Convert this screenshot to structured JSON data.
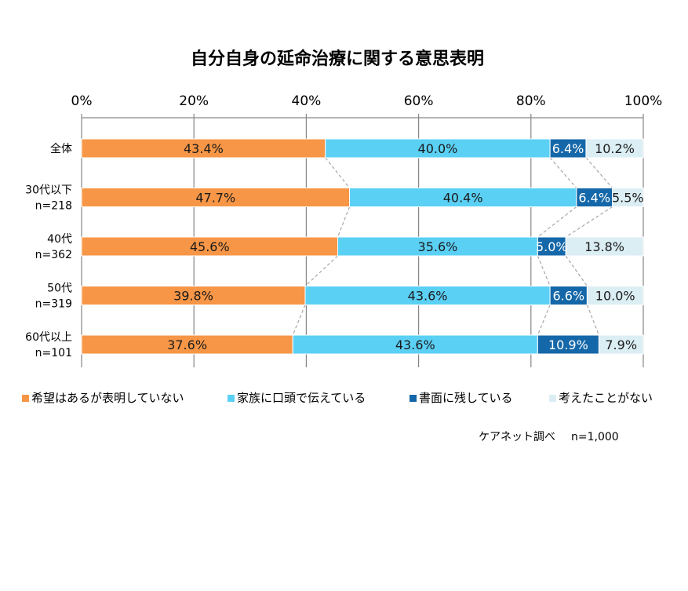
{
  "chart_data": {
    "type": "bar",
    "orientation": "horizontal",
    "stacked": true,
    "percent": true,
    "title": "自分自身の延命治療に関する意思表明",
    "xlim": [
      0,
      100
    ],
    "x_ticks": [
      "0%",
      "20%",
      "40%",
      "60%",
      "80%",
      "100%"
    ],
    "grid": true,
    "legend_position": "bottom",
    "categories": [
      {
        "line1": "全体",
        "line2": ""
      },
      {
        "line1": "30代以下",
        "line2": "n=218"
      },
      {
        "line1": "40代",
        "line2": "n=362"
      },
      {
        "line1": "50代",
        "line2": "n=319"
      },
      {
        "line1": "60代以上",
        "line2": "n=101"
      }
    ],
    "series": [
      {
        "name": "希望はあるが表明していない",
        "color": "#F79646",
        "values": [
          43.4,
          47.7,
          45.6,
          39.8,
          37.6
        ],
        "labels": [
          "43.4%",
          "47.7%",
          "45.6%",
          "39.8%",
          "37.6%"
        ]
      },
      {
        "name": "家族に口頭で伝えている",
        "color": "#5BD0F5",
        "values": [
          40.0,
          40.4,
          35.6,
          43.6,
          43.6
        ],
        "labels": [
          "40.0%",
          "40.4%",
          "35.6%",
          "43.6%",
          "43.6%"
        ]
      },
      {
        "name": "書面に残している",
        "color": "#1467A8",
        "values": [
          6.4,
          6.4,
          5.0,
          6.6,
          10.9
        ],
        "labels": [
          "6.4%",
          "6.4%",
          "5.0%",
          "6.6%",
          "10.9%"
        ]
      },
      {
        "name": "考えたことがない",
        "color": "#DBEEF4",
        "values": [
          10.2,
          5.5,
          13.8,
          10.0,
          7.9
        ],
        "labels": [
          "10.2%",
          "5.5%",
          "13.8%",
          "10.0%",
          "7.9%"
        ]
      }
    ]
  },
  "source": {
    "text": "ケアネット調べ",
    "n": "n=1,000"
  }
}
